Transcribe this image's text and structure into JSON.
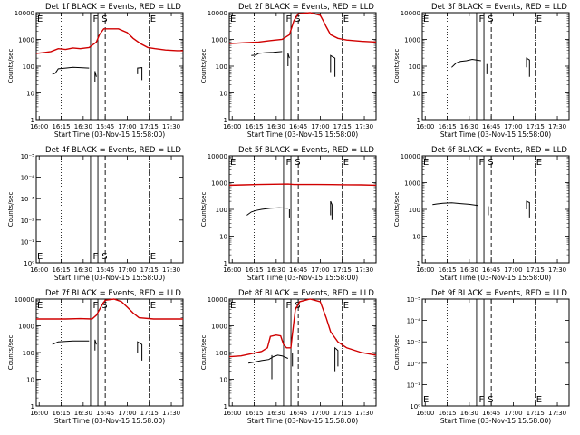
{
  "colors": {
    "events": "#000000",
    "lld": "#d00000",
    "axes": "#000000"
  },
  "common": {
    "ylabel": "Counts/sec",
    "xlabel": "Start Time (03-Nov-15 15:58:00)",
    "xticks": [
      "16:00",
      "16:15",
      "16:30",
      "16:45",
      "17:00",
      "17:15",
      "17:30"
    ],
    "xrange_min": [
      0,
      100
    ],
    "xtick_min": [
      2,
      17,
      32,
      47,
      62,
      77,
      92
    ],
    "dotted_min": [
      17,
      77
    ],
    "dashed_min": [
      47,
      77
    ],
    "solid_min": [
      37,
      42
    ],
    "yrange_log": [
      1,
      10000
    ],
    "yticks_normal": [
      "1",
      "10",
      "100",
      "1000",
      "10000"
    ],
    "yticks_empty": [
      "10⁰",
      "10⁻¹",
      "10⁻²",
      "10⁻³",
      "10⁻⁴",
      "10⁻⁵"
    ],
    "marker_labels": [
      {
        "label": "E",
        "min": 0
      },
      {
        "label": "F",
        "min": 38
      },
      {
        "label": "S",
        "min": 44
      },
      {
        "label": "E",
        "min": 77
      }
    ]
  },
  "chart_data": [
    {
      "type": "line",
      "title": "Det 1f BLACK = Events, RED = LLD",
      "series": [
        {
          "name": "Events",
          "color": "black",
          "points": [
            [
              11,
              50
            ],
            [
              13,
              55
            ],
            [
              15,
              80
            ],
            [
              20,
              85
            ],
            [
              25,
              90
            ],
            [
              30,
              88
            ],
            [
              36,
              85
            ]
          ],
          "extra": [
            [
              [
                40,
                25
              ],
              [
                40,
                65
              ],
              [
                41,
                40
              ]
            ],
            [
              [
                69,
                50
              ],
              [
                69,
                85
              ],
              [
                72,
                88
              ],
              [
                72,
                30
              ]
            ]
          ]
        },
        {
          "name": "LLD",
          "color": "red",
          "points": [
            [
              0,
              300
            ],
            [
              5,
              320
            ],
            [
              10,
              350
            ],
            [
              15,
              450
            ],
            [
              20,
              420
            ],
            [
              25,
              480
            ],
            [
              30,
              450
            ],
            [
              36,
              500
            ],
            [
              41,
              800
            ],
            [
              43,
              1500
            ],
            [
              46,
              2500
            ],
            [
              56,
              2500
            ],
            [
              62,
              1800
            ],
            [
              66,
              1100
            ],
            [
              71,
              700
            ],
            [
              76,
              500
            ],
            [
              81,
              450
            ],
            [
              88,
              400
            ],
            [
              96,
              380
            ],
            [
              100,
              380
            ]
          ]
        }
      ]
    },
    {
      "type": "line",
      "title": "Det 2f BLACK = Events, RED = LLD",
      "series": [
        {
          "name": "Events",
          "color": "black",
          "points": [
            [
              15,
              250
            ],
            [
              18,
              260
            ],
            [
              20,
              300
            ],
            [
              25,
              320
            ],
            [
              30,
              330
            ],
            [
              36,
              350
            ]
          ],
          "extra": [
            [
              [
                40,
                100
              ],
              [
                40,
                300
              ],
              [
                41,
                200
              ]
            ],
            [
              [
                69,
                60
              ],
              [
                69,
                250
              ],
              [
                72,
                200
              ],
              [
                72,
                40
              ]
            ]
          ]
        },
        {
          "name": "LLD",
          "color": "red",
          "points": [
            [
              0,
              700
            ],
            [
              10,
              750
            ],
            [
              20,
              800
            ],
            [
              28,
              900
            ],
            [
              36,
              1000
            ],
            [
              41,
              1500
            ],
            [
              44,
              5000
            ],
            [
              47,
              9000
            ],
            [
              55,
              10000
            ],
            [
              62,
              8000
            ],
            [
              64,
              5000
            ],
            [
              66,
              3000
            ],
            [
              69,
              1500
            ],
            [
              74,
              1100
            ],
            [
              80,
              950
            ],
            [
              90,
              850
            ],
            [
              100,
              800
            ]
          ]
        }
      ]
    },
    {
      "type": "line",
      "title": "Det 3f BLACK = Events, RED = LLD",
      "series": [
        {
          "name": "Events",
          "color": "black",
          "points": [
            [
              20,
              90
            ],
            [
              23,
              130
            ],
            [
              26,
              150
            ],
            [
              30,
              160
            ],
            [
              34,
              180
            ],
            [
              40,
              160
            ]
          ],
          "extra": [
            [
              [
                44,
                50
              ],
              [
                44,
                120
              ]
            ],
            [
              [
                71,
                90
              ],
              [
                71,
                200
              ],
              [
                73,
                170
              ],
              [
                73,
                40
              ]
            ]
          ]
        }
      ]
    },
    {
      "type": "line",
      "title": "Det 4f BLACK = Events, RED = LLD",
      "empty": true,
      "series": []
    },
    {
      "type": "line",
      "title": "Det 5f BLACK = Events, RED = LLD",
      "series": [
        {
          "name": "Events",
          "color": "black",
          "points": [
            [
              12,
              60
            ],
            [
              15,
              80
            ],
            [
              18,
              90
            ],
            [
              22,
              100
            ],
            [
              28,
              110
            ],
            [
              34,
              115
            ],
            [
              40,
              110
            ]
          ],
          "extra": [
            [
              [
                41,
                50
              ],
              [
                41,
                100
              ]
            ],
            [
              [
                69,
                60
              ],
              [
                69,
                200
              ],
              [
                70,
                150
              ],
              [
                70,
                40
              ]
            ]
          ]
        },
        {
          "name": "LLD",
          "color": "red",
          "points": [
            [
              0,
              800
            ],
            [
              10,
              820
            ],
            [
              20,
              850
            ],
            [
              30,
              870
            ],
            [
              40,
              880
            ],
            [
              44,
              850
            ],
            [
              50,
              850
            ],
            [
              60,
              850
            ],
            [
              70,
              840
            ],
            [
              80,
              830
            ],
            [
              90,
              820
            ],
            [
              100,
              800
            ]
          ]
        }
      ]
    },
    {
      "type": "line",
      "title": "Det 6f BLACK = Events, RED = LLD",
      "series": [
        {
          "name": "Events",
          "color": "black",
          "points": [
            [
              7,
              150
            ],
            [
              10,
              160
            ],
            [
              14,
              170
            ],
            [
              20,
              175
            ],
            [
              26,
              165
            ],
            [
              32,
              155
            ],
            [
              38,
              140
            ]
          ],
          "extra": [
            [
              [
                45,
                60
              ],
              [
                45,
                130
              ]
            ],
            [
              [
                71,
                100
              ],
              [
                71,
                200
              ],
              [
                73,
                180
              ],
              [
                73,
                50
              ]
            ]
          ]
        }
      ]
    },
    {
      "type": "line",
      "title": "Det 7f BLACK = Events, RED = LLD",
      "series": [
        {
          "name": "Events",
          "color": "black",
          "points": [
            [
              11,
              200
            ],
            [
              15,
              250
            ],
            [
              20,
              260
            ],
            [
              25,
              270
            ],
            [
              30,
              270
            ],
            [
              36,
              270
            ]
          ],
          "extra": [
            [
              [
                40,
                120
              ],
              [
                40,
                300
              ],
              [
                41,
                200
              ]
            ],
            [
              [
                69,
                100
              ],
              [
                69,
                250
              ],
              [
                72,
                200
              ],
              [
                72,
                50
              ]
            ]
          ]
        },
        {
          "name": "LLD",
          "color": "red",
          "points": [
            [
              0,
              1800
            ],
            [
              10,
              1800
            ],
            [
              20,
              1800
            ],
            [
              30,
              1850
            ],
            [
              38,
              1800
            ],
            [
              41,
              2500
            ],
            [
              44,
              5000
            ],
            [
              47,
              9000
            ],
            [
              53,
              10000
            ],
            [
              58,
              8000
            ],
            [
              62,
              5000
            ],
            [
              66,
              3000
            ],
            [
              70,
              2000
            ],
            [
              80,
              1800
            ],
            [
              90,
              1800
            ],
            [
              100,
              1800
            ]
          ]
        }
      ]
    },
    {
      "type": "line",
      "title": "Det 8f BLACK = Events, RED = LLD",
      "series": [
        {
          "name": "Events",
          "color": "black",
          "points": [
            [
              13,
              40
            ],
            [
              18,
              45
            ],
            [
              22,
              50
            ],
            [
              27,
              55
            ],
            [
              30,
              70
            ],
            [
              33,
              80
            ],
            [
              36,
              75
            ],
            [
              40,
              60
            ]
          ],
          "extra": [
            [
              [
                29,
                10
              ],
              [
                29,
                80
              ]
            ],
            [
              [
                43,
                30
              ],
              [
                43,
                100
              ]
            ],
            [
              [
                72,
                20
              ],
              [
                72,
                150
              ],
              [
                74,
                120
              ],
              [
                74,
                30
              ]
            ]
          ]
        },
        {
          "name": "LLD",
          "color": "red",
          "points": [
            [
              0,
              70
            ],
            [
              8,
              75
            ],
            [
              15,
              90
            ],
            [
              22,
              110
            ],
            [
              26,
              150
            ],
            [
              28,
              400
            ],
            [
              32,
              450
            ],
            [
              35,
              420
            ],
            [
              37,
              200
            ],
            [
              39,
              150
            ],
            [
              42,
              150
            ],
            [
              43,
              500
            ],
            [
              45,
              4000
            ],
            [
              48,
              8000
            ],
            [
              55,
              10000
            ],
            [
              62,
              8000
            ],
            [
              66,
              2000
            ],
            [
              69,
              600
            ],
            [
              74,
              250
            ],
            [
              80,
              150
            ],
            [
              90,
              100
            ],
            [
              100,
              80
            ]
          ]
        }
      ]
    },
    {
      "type": "line",
      "title": "Det 9f BLACK = Events, RED = LLD",
      "empty": true,
      "series": []
    }
  ]
}
